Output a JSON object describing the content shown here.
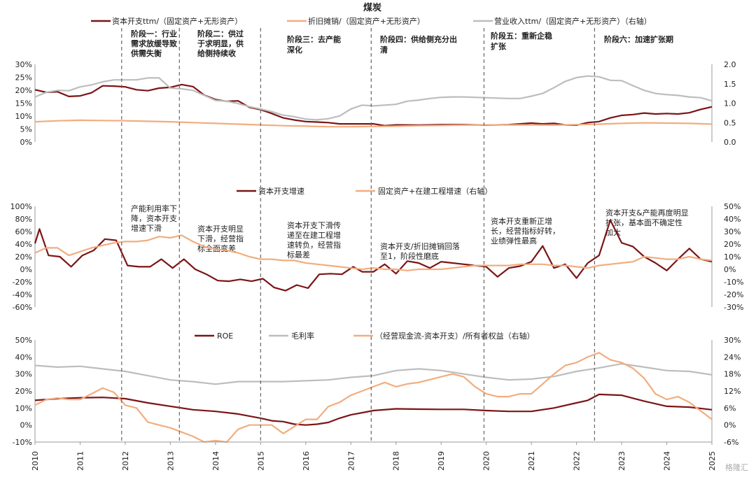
{
  "title": "煤炭",
  "colors": {
    "dark_red": "#7b1416",
    "orange": "#f2ad7e",
    "gray": "#bdbdbd",
    "divider": "#666666",
    "axis": "#999999",
    "text": "#222222"
  },
  "x_labels": [
    "2010",
    "2011",
    "2012",
    "2013",
    "2014",
    "2015",
    "2016",
    "2017",
    "2018",
    "2019",
    "2020",
    "2021",
    "2022",
    "2023",
    "2024",
    "2025"
  ],
  "stage_dividers": [
    2011.92,
    2013.2,
    2015.0,
    2017.45,
    2019.95,
    2022.4
  ],
  "watermark": "格隆汇",
  "chart_data": [
    {
      "type": "line",
      "legend": [
        "资本开支ttm/（固定资产+无形资产）",
        "折旧摊销/（固定资产+无形资产）",
        "营业收入ttm/（固定资产+无形资产）（右轴）"
      ],
      "y_left_ticks": [
        "30%",
        "25%",
        "20%",
        "15%",
        "10%",
        "5%",
        "0%"
      ],
      "y_right_ticks": [
        "2.0",
        "1.5",
        "1.0",
        "0.5",
        "0.0"
      ],
      "ylim": [
        0,
        30
      ],
      "ylim_right": [
        0,
        2.0
      ],
      "stages": [
        "阶段一：行业需求放缓导致供需失衡",
        "阶段二：供过于求明显，供给侧持续收",
        "阶段三：去产能深化",
        "阶段四：供给侧充分出清",
        "阶段五：重新企稳扩张",
        "阶段六：加速扩张期"
      ],
      "series": [
        {
          "name": "资本开支ttm/（固定资产+无形资产）",
          "axis": "left",
          "color": "#7b1416",
          "x": [
            2010,
            2010.25,
            2010.5,
            2010.75,
            2011,
            2011.25,
            2011.5,
            2011.75,
            2012,
            2012.25,
            2012.5,
            2012.75,
            2013,
            2013.25,
            2013.5,
            2013.75,
            2014,
            2014.25,
            2014.5,
            2014.75,
            2015,
            2015.25,
            2015.5,
            2015.75,
            2016,
            2016.25,
            2016.5,
            2016.75,
            2017,
            2017.25,
            2017.5,
            2017.75,
            2018,
            2018.5,
            2019,
            2019.5,
            2020,
            2020.5,
            2021,
            2021.25,
            2021.5,
            2021.75,
            2022,
            2022.25,
            2022.5,
            2022.75,
            2023,
            2023.25,
            2023.5,
            2023.75,
            2024,
            2024.25,
            2024.5,
            2024.75,
            2025
          ],
          "y": [
            20.2,
            19.2,
            19.4,
            17.6,
            17.8,
            19.0,
            21.7,
            21.6,
            21.3,
            20.2,
            19.8,
            20.8,
            21.1,
            22.2,
            21.4,
            18.1,
            16.4,
            15.7,
            15.9,
            13.4,
            12.5,
            11.0,
            9.3,
            8.5,
            7.9,
            7.7,
            7.5,
            7.0,
            7.0,
            7.0,
            7.0,
            6.3,
            6.6,
            6.5,
            6.7,
            6.7,
            6.5,
            6.7,
            7.3,
            7.0,
            7.2,
            6.6,
            6.5,
            7.5,
            7.9,
            9.3,
            10.3,
            10.6,
            11.2,
            10.8,
            11.0,
            10.8,
            11.3,
            12.6,
            13.6
          ]
        },
        {
          "name": "折旧摊销/（固定资产+无形资产）",
          "axis": "left",
          "color": "#f2ad7e",
          "x": [
            2010,
            2010.5,
            2011,
            2011.5,
            2012,
            2012.5,
            2013,
            2013.5,
            2014,
            2014.5,
            2015,
            2015.5,
            2016,
            2016.5,
            2017,
            2017.5,
            2018,
            2018.5,
            2019,
            2019.5,
            2020,
            2020.5,
            2021,
            2021.5,
            2022,
            2022.5,
            2023,
            2023.5,
            2024,
            2024.5,
            2025
          ],
          "y": [
            7.8,
            8.2,
            8.4,
            8.3,
            8.2,
            8.0,
            7.8,
            7.5,
            7.2,
            6.9,
            6.6,
            6.3,
            6.1,
            5.9,
            5.9,
            6.0,
            6.1,
            6.3,
            6.4,
            6.5,
            6.6,
            6.6,
            6.6,
            6.5,
            6.7,
            6.9,
            7.2,
            7.4,
            7.3,
            7.2,
            6.9
          ]
        },
        {
          "name": "营业收入ttm/（固定资产+无形资产）（右轴）",
          "axis": "right",
          "color": "#bdbdbd",
          "x": [
            2010,
            2010.25,
            2010.5,
            2010.75,
            2011,
            2011.25,
            2011.5,
            2011.75,
            2012,
            2012.25,
            2012.5,
            2012.75,
            2013,
            2013.25,
            2013.5,
            2013.75,
            2014,
            2014.25,
            2014.5,
            2014.75,
            2015,
            2015.25,
            2015.5,
            2015.75,
            2016,
            2016.25,
            2016.5,
            2016.75,
            2017,
            2017.25,
            2017.5,
            2017.75,
            2018,
            2018.25,
            2018.5,
            2018.75,
            2019,
            2019.25,
            2019.5,
            2019.75,
            2020,
            2020.25,
            2020.5,
            2020.75,
            2021,
            2021.25,
            2021.5,
            2021.75,
            2022,
            2022.25,
            2022.5,
            2022.75,
            2023,
            2023.25,
            2023.5,
            2023.75,
            2024,
            2024.25,
            2024.5,
            2024.75,
            2025
          ],
          "y": [
            1.16,
            1.28,
            1.33,
            1.32,
            1.42,
            1.47,
            1.55,
            1.6,
            1.6,
            1.6,
            1.65,
            1.65,
            1.39,
            1.37,
            1.33,
            1.2,
            1.07,
            1.05,
            0.99,
            0.91,
            0.85,
            0.78,
            0.69,
            0.65,
            0.59,
            0.57,
            0.6,
            0.67,
            0.85,
            0.95,
            0.93,
            0.95,
            0.97,
            1.05,
            1.08,
            1.12,
            1.15,
            1.16,
            1.16,
            1.15,
            1.14,
            1.13,
            1.12,
            1.12,
            1.18,
            1.25,
            1.4,
            1.56,
            1.66,
            1.7,
            1.68,
            1.59,
            1.58,
            1.45,
            1.33,
            1.25,
            1.22,
            1.2,
            1.16,
            1.14,
            1.06
          ]
        }
      ]
    },
    {
      "type": "line",
      "legend": [
        "资本开支增速",
        "固定资产+在建工程增速（右轴）"
      ],
      "y_left_ticks": [
        "100%",
        "80%",
        "60%",
        "40%",
        "20%",
        "0%",
        "-20%",
        "-40%",
        "-60%"
      ],
      "y_right_ticks": [
        "50%",
        "40%",
        "30%",
        "20%",
        "10%",
        "0%",
        "-10%",
        "-20%",
        "-30%"
      ],
      "ylim": [
        -60,
        100
      ],
      "ylim_right": [
        -30,
        50
      ],
      "annotations": [
        "产能利用率下降，资本开支增速下滑",
        "资本开支明显下滑，经营指标全面变差",
        "资本开支下滑传递至在建工程增速转负，经营指标最差",
        "资本开支/折旧摊销回落至1，阶段性磨底",
        "资本开支重新正增长，经营指标好转，业绩弹性最高",
        "资本开支&产能再度明显扩张，基本面不确定性加大"
      ],
      "series": [
        {
          "name": "资本开支增速",
          "axis": "left",
          "color": "#7b1416",
          "x": [
            2010,
            2010.1,
            2010.3,
            2010.55,
            2010.8,
            2011.05,
            2011.3,
            2011.55,
            2011.8,
            2012.05,
            2012.3,
            2012.55,
            2012.8,
            2013.05,
            2013.3,
            2013.55,
            2013.8,
            2014.05,
            2014.3,
            2014.55,
            2014.8,
            2015.05,
            2015.3,
            2015.55,
            2015.8,
            2016.05,
            2016.3,
            2016.55,
            2016.8,
            2017.05,
            2017.25,
            2017.5,
            2017.75,
            2018,
            2018.25,
            2018.5,
            2018.75,
            2019,
            2019.25,
            2019.5,
            2019.75,
            2020,
            2020.25,
            2020.5,
            2020.75,
            2021,
            2021.25,
            2021.5,
            2021.75,
            2022,
            2022.25,
            2022.5,
            2022.75,
            2023,
            2023.25,
            2023.5,
            2023.75,
            2024,
            2024.25,
            2024.5,
            2024.75,
            2025
          ],
          "y": [
            41,
            64,
            22,
            20,
            4,
            22,
            30,
            48,
            46,
            6,
            4,
            4,
            16,
            2,
            16,
            0,
            -8,
            -18,
            -19,
            -16,
            -19,
            -15,
            -29,
            -34,
            -25,
            -30,
            -8,
            -7,
            -8,
            4,
            -4,
            -4,
            8,
            -7,
            13,
            10,
            2,
            12,
            10,
            8,
            6,
            4,
            -12,
            2,
            5,
            12,
            37,
            2,
            8,
            -14,
            10,
            22,
            78,
            42,
            36,
            20,
            10,
            -2,
            16,
            33,
            16,
            12
          ]
        },
        {
          "name": "固定资产+在建工程增速（右轴）",
          "axis": "right",
          "color": "#f2ad7e",
          "x": [
            2010,
            2010.25,
            2010.5,
            2010.75,
            2011,
            2011.25,
            2011.5,
            2011.75,
            2012,
            2012.25,
            2012.5,
            2012.75,
            2013,
            2013.25,
            2013.5,
            2013.75,
            2014,
            2014.25,
            2014.5,
            2014.75,
            2015,
            2015.25,
            2015.5,
            2015.75,
            2016,
            2016.25,
            2016.5,
            2016.75,
            2017,
            2017.25,
            2017.5,
            2017.75,
            2018,
            2018.25,
            2018.5,
            2018.75,
            2019,
            2019.25,
            2019.5,
            2019.75,
            2020,
            2020.25,
            2020.5,
            2020.75,
            2021,
            2021.25,
            2021.5,
            2021.75,
            2022,
            2022.25,
            2022.5,
            2022.75,
            2023,
            2023.25,
            2023.5,
            2023.75,
            2024,
            2024.25,
            2024.5,
            2024.75,
            2025
          ],
          "y": [
            13,
            17,
            17,
            11,
            14,
            17,
            19,
            21,
            22,
            22,
            23,
            26,
            25,
            27,
            22,
            18,
            16,
            15,
            13,
            10,
            8,
            8,
            7,
            7,
            5,
            4,
            3,
            2,
            1,
            0,
            1,
            0,
            0,
            -1,
            0,
            0,
            0,
            1,
            2,
            3,
            3,
            3,
            3,
            4,
            4,
            4,
            3,
            3,
            2,
            1,
            3,
            4,
            5,
            6,
            10,
            9,
            8,
            8,
            10,
            8,
            7
          ]
        }
      ]
    },
    {
      "type": "line",
      "legend": [
        "ROE",
        "毛利率",
        "（经营现金流-资本开支）/所有者权益（右轴）"
      ],
      "y_left_ticks": [
        "50%",
        "40%",
        "30%",
        "20%",
        "10%",
        "0%",
        "-10%"
      ],
      "y_right_ticks": [
        "30%",
        "24%",
        "18%",
        "12%",
        "6%",
        "0%",
        "-6%"
      ],
      "ylim": [
        -10,
        50
      ],
      "ylim_right": [
        -6,
        30
      ],
      "series": [
        {
          "name": "ROE",
          "axis": "left",
          "color": "#7b1416",
          "x": [
            2010,
            2010.5,
            2011,
            2011.5,
            2012,
            2012.5,
            2013,
            2013.5,
            2014,
            2014.5,
            2015,
            2015.25,
            2015.5,
            2015.75,
            2016,
            2016.25,
            2016.5,
            2016.75,
            2017,
            2017.5,
            2018,
            2018.5,
            2019,
            2019.5,
            2020,
            2020.5,
            2021,
            2021.5,
            2022,
            2022.25,
            2022.5,
            2023,
            2023.5,
            2024,
            2024.5,
            2025
          ],
          "y": [
            14.5,
            15.5,
            16,
            16.2,
            15.5,
            13,
            11,
            9,
            8,
            6.5,
            4,
            2.5,
            2,
            0.5,
            0,
            0.5,
            1.5,
            4,
            6,
            8.5,
            9.5,
            9.3,
            9.2,
            9.2,
            8.5,
            8,
            8,
            10,
            13,
            14.5,
            18,
            17.5,
            14,
            11,
            10.5,
            9
          ]
        },
        {
          "name": "毛利率",
          "axis": "left",
          "color": "#bdbdbd",
          "x": [
            2010,
            2010.5,
            2011,
            2011.5,
            2012,
            2012.5,
            2013,
            2013.5,
            2014,
            2014.5,
            2015,
            2015.5,
            2016,
            2016.5,
            2017,
            2017.5,
            2018,
            2018.5,
            2019,
            2019.5,
            2020,
            2020.5,
            2021,
            2021.5,
            2022,
            2022.5,
            2023,
            2023.5,
            2024,
            2024.5,
            2025
          ],
          "y": [
            35,
            34,
            34.5,
            33,
            31.5,
            29,
            26.5,
            25.5,
            24,
            25.5,
            25.5,
            25.5,
            26,
            26.5,
            28,
            29,
            32,
            33,
            32,
            30,
            28,
            26.5,
            27,
            28.5,
            31.5,
            33.5,
            36,
            34,
            32,
            31.5,
            29.5
          ]
        },
        {
          "name": "（经营现金流-资本开支）/所有者权益（右轴）",
          "axis": "right",
          "color": "#f2ad7e",
          "x": [
            2010,
            2010.25,
            2010.5,
            2010.75,
            2011,
            2011.25,
            2011.5,
            2011.75,
            2012,
            2012.25,
            2012.5,
            2012.75,
            2013,
            2013.25,
            2013.5,
            2013.75,
            2014,
            2014.25,
            2014.5,
            2014.75,
            2015,
            2015.25,
            2015.5,
            2015.75,
            2016,
            2016.25,
            2016.5,
            2016.75,
            2017,
            2017.25,
            2017.5,
            2017.75,
            2018,
            2018.25,
            2018.5,
            2018.75,
            2019,
            2019.25,
            2019.5,
            2019.75,
            2020,
            2020.25,
            2020.5,
            2020.75,
            2021,
            2021.25,
            2021.5,
            2021.75,
            2022,
            2022.25,
            2022.5,
            2022.75,
            2023,
            2023.25,
            2023.5,
            2023.75,
            2024,
            2024.25,
            2024.5,
            2024.75,
            2025
          ],
          "y": [
            7,
            9,
            9.5,
            9,
            9,
            11,
            13,
            11.5,
            7,
            6,
            1,
            0,
            -1,
            -2.5,
            -4,
            -6,
            -5.5,
            -6,
            -1.5,
            0,
            0,
            0,
            -3,
            -0.5,
            2,
            2,
            6.5,
            8,
            10.5,
            12,
            13.5,
            15,
            13.5,
            14.5,
            15,
            16,
            17,
            18,
            17,
            13.5,
            11,
            10,
            10,
            11,
            11,
            14.5,
            18,
            21,
            22,
            24,
            25.5,
            23,
            22,
            20,
            16.5,
            11,
            9,
            10,
            8,
            5,
            2
          ]
        }
      ]
    }
  ]
}
